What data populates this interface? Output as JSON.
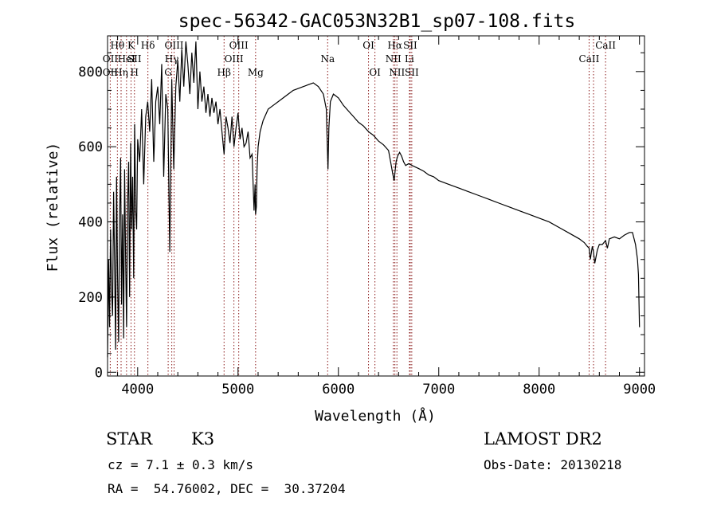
{
  "chart_data": {
    "type": "line",
    "title": "spec-56342-GAC053N32B1_sp07-108.fits",
    "xlabel": "Wavelength (Å)",
    "ylabel": "Flux (relative)",
    "xlim": [
      3700,
      9050
    ],
    "ylim": [
      -10,
      895
    ],
    "xticks": [
      4000,
      5000,
      6000,
      7000,
      8000,
      9000
    ],
    "yticks": [
      0,
      200,
      400,
      600,
      800
    ],
    "grid": false,
    "line_color": "#000000",
    "marker_color": "#8b1a1a",
    "series": [
      {
        "x": [
          3700,
          3710,
          3720,
          3730,
          3740,
          3750,
          3760,
          3770,
          3780,
          3790,
          3800,
          3810,
          3820,
          3830,
          3840,
          3850,
          3860,
          3870,
          3880,
          3890,
          3900,
          3910,
          3920,
          3930,
          3940,
          3950,
          3960,
          3970,
          3980,
          3990,
          4000,
          4020,
          4040,
          4060,
          4080,
          4100,
          4120,
          4140,
          4160,
          4180,
          4200,
          4220,
          4240,
          4260,
          4280,
          4300,
          4320,
          4340,
          4360,
          4380,
          4400,
          4420,
          4440,
          4460,
          4480,
          4500,
          4520,
          4540,
          4560,
          4580,
          4600,
          4620,
          4640,
          4660,
          4680,
          4700,
          4720,
          4740,
          4760,
          4780,
          4800,
          4820,
          4840,
          4861,
          4880,
          4900,
          4920,
          4940,
          4960,
          4980,
          5000,
          5020,
          5040,
          5060,
          5080,
          5100,
          5120,
          5140,
          5160,
          5170,
          5175,
          5183,
          5190,
          5200,
          5220,
          5250,
          5300,
          5350,
          5400,
          5450,
          5500,
          5550,
          5600,
          5650,
          5700,
          5750,
          5800,
          5850,
          5880,
          5890,
          5896,
          5905,
          5920,
          5950,
          6000,
          6050,
          6100,
          6150,
          6200,
          6250,
          6300,
          6350,
          6400,
          6450,
          6500,
          6520,
          6540,
          6555,
          6563,
          6575,
          6590,
          6610,
          6630,
          6650,
          6670,
          6700,
          6750,
          6800,
          6850,
          6900,
          6950,
          7000,
          7100,
          7200,
          7300,
          7400,
          7500,
          7600,
          7700,
          7800,
          7900,
          8000,
          8100,
          8200,
          8300,
          8400,
          8450,
          8480,
          8498,
          8510,
          8530,
          8542,
          8555,
          8580,
          8600,
          8630,
          8662,
          8680,
          8700,
          8750,
          8800,
          8850,
          8900,
          8930,
          8960,
          8980,
          8990,
          9000
        ],
        "y": [
          40,
          300,
          120,
          380,
          220,
          150,
          480,
          300,
          60,
          520,
          250,
          80,
          400,
          570,
          180,
          420,
          90,
          540,
          300,
          120,
          450,
          560,
          200,
          610,
          380,
          520,
          250,
          660,
          430,
          380,
          620,
          560,
          700,
          500,
          680,
          720,
          640,
          780,
          560,
          720,
          760,
          660,
          820,
          520,
          740,
          700,
          320,
          780,
          540,
          760,
          830,
          720,
          860,
          760,
          880,
          820,
          740,
          850,
          770,
          880,
          700,
          800,
          720,
          760,
          690,
          740,
          680,
          730,
          690,
          720,
          660,
          700,
          640,
          580,
          680,
          650,
          610,
          680,
          600,
          650,
          690,
          620,
          650,
          600,
          610,
          640,
          570,
          580,
          430,
          500,
          420,
          440,
          540,
          600,
          640,
          670,
          700,
          710,
          720,
          730,
          740,
          750,
          755,
          760,
          765,
          770,
          760,
          740,
          700,
          600,
          540,
          650,
          720,
          740,
          730,
          710,
          695,
          680,
          665,
          655,
          640,
          630,
          615,
          605,
          590,
          560,
          530,
          510,
          530,
          560,
          575,
          585,
          575,
          560,
          550,
          555,
          548,
          542,
          535,
          525,
          520,
          510,
          500,
          490,
          480,
          470,
          460,
          450,
          440,
          430,
          420,
          410,
          400,
          385,
          370,
          355,
          345,
          335,
          330,
          300,
          335,
          320,
          290,
          325,
          340,
          340,
          350,
          330,
          355,
          360,
          355,
          365,
          372,
          372,
          340,
          300,
          260,
          120
        ]
      }
    ],
    "lines": [
      {
        "label": "Hθ",
        "x": 3798,
        "row": 1
      },
      {
        "label": "OII",
        "x": 3727,
        "row": 2
      },
      {
        "label": "OII",
        "x": 3727,
        "row": 3
      },
      {
        "label": "Hη",
        "x": 3835,
        "row": 3
      },
      {
        "label": "HeI",
        "x": 3889,
        "row": 2
      },
      {
        "label": "K",
        "x": 3934,
        "row": 1
      },
      {
        "label": "SII",
        "x": 3968,
        "row": 2
      },
      {
        "label": "H",
        "x": 3968,
        "row": 3
      },
      {
        "label": "Hδ",
        "x": 4102,
        "row": 1
      },
      {
        "label": "OIII",
        "x": 4363,
        "row": 1
      },
      {
        "label": "Hγ",
        "x": 4340,
        "row": 2
      },
      {
        "label": "G",
        "x": 4304,
        "row": 3
      },
      {
        "label": "Hβ",
        "x": 4861,
        "row": 3
      },
      {
        "label": "OIII",
        "x": 5007,
        "row": 1
      },
      {
        "label": "OIII",
        "x": 4959,
        "row": 2
      },
      {
        "label": "Mg",
        "x": 5175,
        "row": 3
      },
      {
        "label": "Na",
        "x": 5893,
        "row": 2
      },
      {
        "label": "OI",
        "x": 6300,
        "row": 1
      },
      {
        "label": "OI",
        "x": 6364,
        "row": 3
      },
      {
        "label": "Hα",
        "x": 6563,
        "row": 1
      },
      {
        "label": "NII",
        "x": 6548,
        "row": 2
      },
      {
        "label": "NII",
        "x": 6583,
        "row": 3
      },
      {
        "label": "SII",
        "x": 6716,
        "row": 1
      },
      {
        "label": "Li",
        "x": 6708,
        "row": 2
      },
      {
        "label": "SII",
        "x": 6731,
        "row": 3
      },
      {
        "label": "CaII",
        "x": 8662,
        "row": 1
      },
      {
        "label": "CaII",
        "x": 8498,
        "row": 2
      }
    ],
    "line_positions": [
      3727,
      3798,
      3835,
      3889,
      3934,
      3968,
      4102,
      4304,
      4340,
      4363,
      4861,
      4959,
      5007,
      5175,
      5893,
      6300,
      6364,
      6548,
      6563,
      6583,
      6708,
      6716,
      6731,
      8498,
      8542,
      8662
    ]
  },
  "info": {
    "object_class": "STAR",
    "subclass": "K3",
    "cz": "cz = 7.1 ± 0.3 km/s",
    "coords": "RA =  54.76002, DEC =  30.37204",
    "survey": "LAMOST DR2",
    "obs_date": "Obs-Date: 20130218"
  }
}
